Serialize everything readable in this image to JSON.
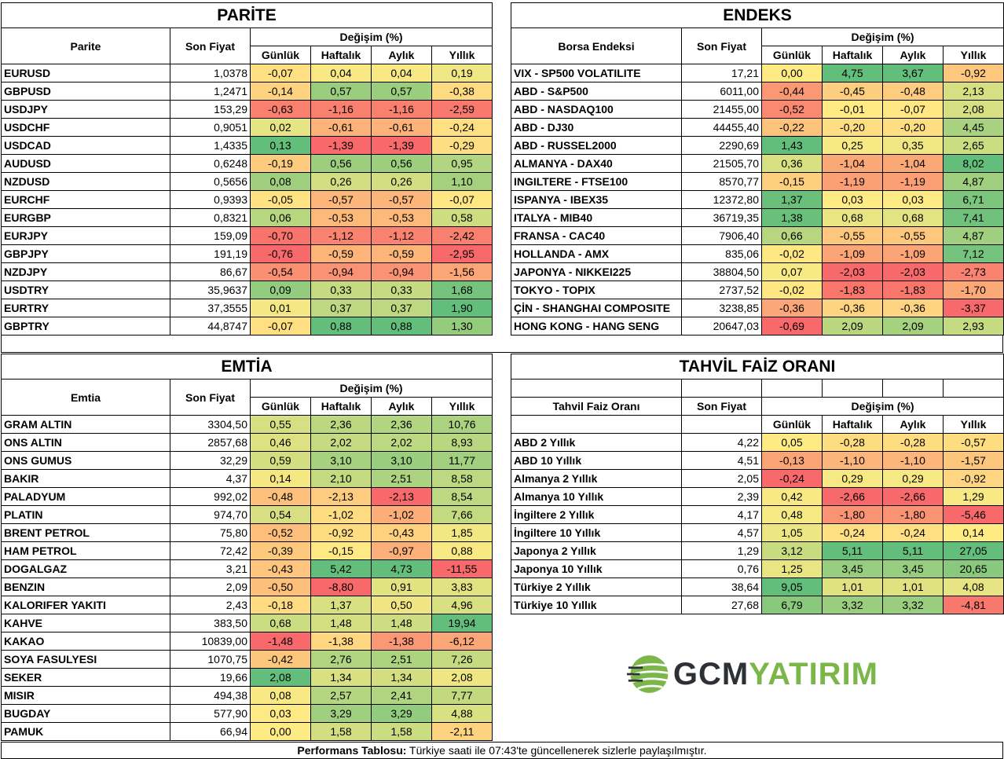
{
  "colors": {
    "red": "#f8696b",
    "yellow": "#ffeb84",
    "green": "#63be7b"
  },
  "parite": {
    "title": "PARİTE",
    "col_name": "Parite",
    "col_price": "Son Fiyat",
    "col_change": "Değişim (%)",
    "periods": [
      "Günlük",
      "Haftalık",
      "Aylık",
      "Yıllık"
    ],
    "rows": [
      {
        "name": "EURUSD",
        "price": "1,0378",
        "values": [
          "-0,07",
          "0,04",
          "0,04",
          "0,19"
        ]
      },
      {
        "name": "GBPUSD",
        "price": "1,2471",
        "values": [
          "-0,14",
          "0,57",
          "0,57",
          "-0,38"
        ]
      },
      {
        "name": "USDJPY",
        "price": "153,29",
        "values": [
          "-0,63",
          "-1,16",
          "-1,16",
          "-2,59"
        ]
      },
      {
        "name": "USDCHF",
        "price": "0,9051",
        "values": [
          "0,02",
          "-0,61",
          "-0,61",
          "-0,24"
        ]
      },
      {
        "name": "USDCAD",
        "price": "1,4335",
        "values": [
          "0,13",
          "-1,39",
          "-1,39",
          "-0,29"
        ]
      },
      {
        "name": "AUDUSD",
        "price": "0,6248",
        "values": [
          "-0,19",
          "0,56",
          "0,56",
          "0,95"
        ]
      },
      {
        "name": "NZDUSD",
        "price": "0,5656",
        "values": [
          "0,08",
          "0,26",
          "0,26",
          "1,10"
        ]
      },
      {
        "name": "EURCHF",
        "price": "0,9393",
        "values": [
          "-0,05",
          "-0,57",
          "-0,57",
          "-0,07"
        ]
      },
      {
        "name": "EURGBP",
        "price": "0,8321",
        "values": [
          "0,06",
          "-0,53",
          "-0,53",
          "0,58"
        ]
      },
      {
        "name": "EURJPY",
        "price": "159,09",
        "values": [
          "-0,70",
          "-1,12",
          "-1,12",
          "-2,42"
        ]
      },
      {
        "name": "GBPJPY",
        "price": "191,19",
        "values": [
          "-0,76",
          "-0,59",
          "-0,59",
          "-2,95"
        ]
      },
      {
        "name": "NZDJPY",
        "price": "86,67",
        "values": [
          "-0,54",
          "-0,94",
          "-0,94",
          "-1,56"
        ]
      },
      {
        "name": "USDTRY",
        "price": "35,9637",
        "values": [
          "0,09",
          "0,33",
          "0,33",
          "1,68"
        ]
      },
      {
        "name": "EURTRY",
        "price": "37,3555",
        "values": [
          "0,01",
          "0,37",
          "0,37",
          "1,90"
        ]
      },
      {
        "name": "GBPTRY",
        "price": "44,8747",
        "values": [
          "-0,07",
          "0,88",
          "0,88",
          "1,30"
        ]
      }
    ]
  },
  "endeks": {
    "title": "ENDEKS",
    "col_name": "Borsa Endeksi",
    "col_price": "Son Fiyat",
    "col_change": "Değişim (%)",
    "periods": [
      "Günlük",
      "Haftalık",
      "Aylık",
      "Yıllık"
    ],
    "rows": [
      {
        "name": "VIX  - SP500 VOLATILITE",
        "price": "17,21",
        "values": [
          "0,00",
          "4,75",
          "3,67",
          "-0,92"
        ]
      },
      {
        "name": "ABD - S&P500",
        "price": "6011,00",
        "values": [
          "-0,44",
          "-0,45",
          "-0,48",
          "2,13"
        ]
      },
      {
        "name": "ABD - NASDAQ100",
        "price": "21455,00",
        "values": [
          "-0,52",
          "-0,01",
          "-0,07",
          "2,08"
        ]
      },
      {
        "name": "ABD - DJ30",
        "price": "44455,40",
        "values": [
          "-0,22",
          "-0,20",
          "-0,20",
          "4,45"
        ]
      },
      {
        "name": "ABD - RUSSEL2000",
        "price": "2290,69",
        "values": [
          "1,43",
          "0,25",
          "0,35",
          "2,65"
        ]
      },
      {
        "name": "ALMANYA - DAX40",
        "price": "21505,70",
        "values": [
          "0,36",
          "-1,04",
          "-1,04",
          "8,02"
        ]
      },
      {
        "name": "INGILTERE - FTSE100",
        "price": "8570,77",
        "values": [
          "-0,15",
          "-1,19",
          "-1,19",
          "4,87"
        ]
      },
      {
        "name": "ISPANYA - IBEX35",
        "price": "12372,80",
        "values": [
          "1,37",
          "0,03",
          "0,03",
          "6,71"
        ]
      },
      {
        "name": "ITALYA - MIB40",
        "price": "36719,35",
        "values": [
          "1,38",
          "0,68",
          "0,68",
          "7,41"
        ]
      },
      {
        "name": "FRANSA - CAC40",
        "price": "7906,40",
        "values": [
          "0,66",
          "-0,55",
          "-0,55",
          "4,87"
        ]
      },
      {
        "name": "HOLLANDA - AMX",
        "price": "835,06",
        "values": [
          "-0,02",
          "-1,09",
          "-1,09",
          "7,12"
        ]
      },
      {
        "name": "JAPONYA - NIKKEI225",
        "price": "38804,50",
        "values": [
          "0,07",
          "-2,03",
          "-2,03",
          "-2,73"
        ]
      },
      {
        "name": "TOKYO - TOPIX",
        "price": "2737,52",
        "values": [
          "-0,02",
          "-1,83",
          "-1,83",
          "-1,70"
        ]
      },
      {
        "name": "ÇİN - SHANGHAI COMPOSITE",
        "price": "3238,85",
        "values": [
          "-0,36",
          "-0,36",
          "-0,36",
          "-3,37"
        ]
      },
      {
        "name": "HONG KONG - HANG SENG",
        "price": "20647,03",
        "values": [
          "-0,69",
          "2,09",
          "2,09",
          "2,93"
        ]
      }
    ]
  },
  "emtia": {
    "title": "EMTİA",
    "col_name": "Emtia",
    "col_price": "Son Fiyat",
    "col_change": "Değişim (%)",
    "periods": [
      "Günlük",
      "Haftalık",
      "Aylık",
      "Yıllık"
    ],
    "rows": [
      {
        "name": "GRAM ALTIN",
        "price": "3304,50",
        "values": [
          "0,55",
          "2,36",
          "2,36",
          "10,76"
        ]
      },
      {
        "name": "ONS ALTIN",
        "price": "2857,68",
        "values": [
          "0,46",
          "2,02",
          "2,02",
          "8,93"
        ]
      },
      {
        "name": "ONS GUMUS",
        "price": "32,29",
        "values": [
          "0,59",
          "3,10",
          "3,10",
          "11,77"
        ]
      },
      {
        "name": "BAKIR",
        "price": "4,37",
        "values": [
          "0,14",
          "2,10",
          "2,51",
          "8,58"
        ]
      },
      {
        "name": "PALADYUM",
        "price": "992,02",
        "values": [
          "-0,48",
          "-2,13",
          "-2,13",
          "8,54"
        ]
      },
      {
        "name": "PLATIN",
        "price": "974,70",
        "values": [
          "0,54",
          "-1,02",
          "-1,02",
          "7,66"
        ]
      },
      {
        "name": "BRENT PETROL",
        "price": "75,80",
        "values": [
          "-0,52",
          "-0,92",
          "-0,43",
          "1,85"
        ]
      },
      {
        "name": "HAM PETROL",
        "price": "72,42",
        "values": [
          "-0,39",
          "-0,15",
          "-0,97",
          "0,88"
        ]
      },
      {
        "name": "DOGALGAZ",
        "price": "3,21",
        "values": [
          "-0,43",
          "5,42",
          "4,73",
          "-11,55"
        ]
      },
      {
        "name": "BENZIN",
        "price": "2,09",
        "values": [
          "-0,50",
          "-8,80",
          "0,91",
          "3,83"
        ]
      },
      {
        "name": "KALORIFER YAKITI",
        "price": "2,43",
        "values": [
          "-0,18",
          "1,37",
          "0,50",
          "4,96"
        ]
      },
      {
        "name": "KAHVE",
        "price": "383,50",
        "values": [
          "0,68",
          "1,48",
          "1,48",
          "19,94"
        ]
      },
      {
        "name": "KAKAO",
        "price": "10839,00",
        "values": [
          "-1,48",
          "-1,38",
          "-1,38",
          "-6,12"
        ]
      },
      {
        "name": "SOYA FASULYESI",
        "price": "1070,75",
        "values": [
          "-0,42",
          "2,76",
          "2,51",
          "7,26"
        ]
      },
      {
        "name": "SEKER",
        "price": "19,66",
        "values": [
          "2,08",
          "1,34",
          "1,34",
          "2,08"
        ]
      },
      {
        "name": "MISIR",
        "price": "494,38",
        "values": [
          "0,08",
          "2,57",
          "2,41",
          "7,77"
        ]
      },
      {
        "name": "BUGDAY",
        "price": "577,90",
        "values": [
          "0,03",
          "3,29",
          "3,29",
          "4,88"
        ]
      },
      {
        "name": "PAMUK",
        "price": "66,94",
        "values": [
          "0,00",
          "1,58",
          "1,58",
          "-2,11"
        ]
      }
    ]
  },
  "tahvil": {
    "title": "TAHVİL FAİZ ORANI",
    "col_name": "Tahvil Faiz Oranı",
    "col_price": "Son Fiyat",
    "col_change": "Değişim (%)",
    "periods": [
      "Günlük",
      "Haftalık",
      "Aylık",
      "Yıllık"
    ],
    "rows": [
      {
        "name": "ABD 2 Yıllık",
        "price": "4,22",
        "values": [
          "0,05",
          "-0,28",
          "-0,28",
          "-0,57"
        ]
      },
      {
        "name": "ABD 10 Yıllık",
        "price": "4,51",
        "values": [
          "-0,13",
          "-1,10",
          "-1,10",
          "-1,57"
        ]
      },
      {
        "name": "Almanya 2 Yıllık",
        "price": "2,05",
        "values": [
          "-0,24",
          "0,29",
          "0,29",
          "-0,92"
        ]
      },
      {
        "name": "Almanya 10 Yıllık",
        "price": "2,39",
        "values": [
          "0,42",
          "-2,66",
          "-2,66",
          "1,29"
        ]
      },
      {
        "name": "İngiltere 2 Yıllık",
        "price": "4,17",
        "values": [
          "0,48",
          "-1,80",
          "-1,80",
          "-5,46"
        ]
      },
      {
        "name": "İngiltere 10 Yıllık",
        "price": "4,57",
        "values": [
          "1,05",
          "-0,24",
          "-0,24",
          "0,14"
        ]
      },
      {
        "name": "Japonya 2 Yıllık",
        "price": "1,29",
        "values": [
          "3,12",
          "5,11",
          "5,11",
          "27,05"
        ]
      },
      {
        "name": "Japonya 10 Yıllık",
        "price": "0,76",
        "values": [
          "1,25",
          "3,45",
          "3,45",
          "20,65"
        ]
      },
      {
        "name": "Türkiye 2 Yıllık",
        "price": "38,64",
        "values": [
          "9,05",
          "1,01",
          "1,01",
          "4,08"
        ]
      },
      {
        "name": "Türkiye 10 Yıllık",
        "price": "27,68",
        "values": [
          "6,79",
          "3,32",
          "3,32",
          "-4,81"
        ]
      }
    ]
  },
  "logo": {
    "brand_part1": "GCM",
    "brand_part2": "YATIRIM",
    "color1": "#2d3035",
    "color2": "#7ab648"
  },
  "footer": {
    "label": "Performans Tablosu:",
    "text": " Türkiye saati ile 07:43'te güncellenerek sizlerle paylaşılmıştır."
  }
}
